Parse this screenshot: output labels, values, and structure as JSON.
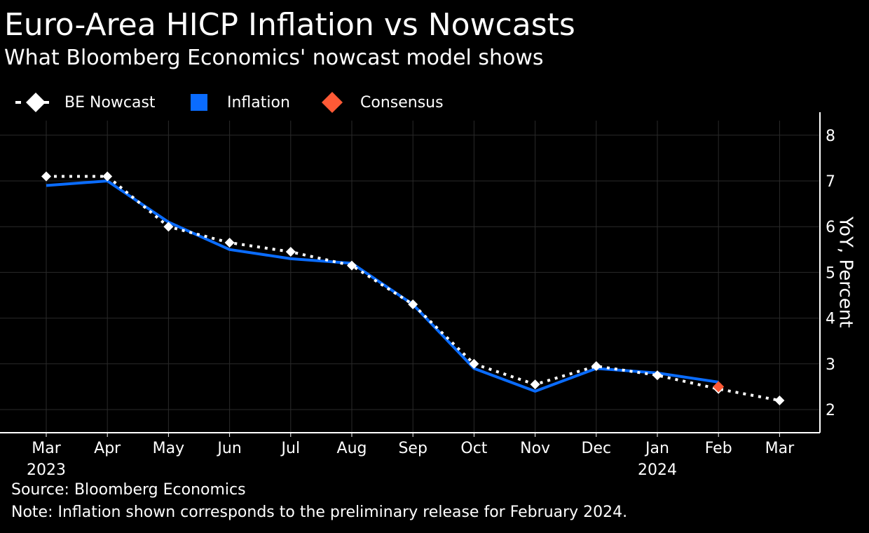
{
  "title": "Euro-Area HICP Inflation vs Nowcasts",
  "subtitle": "What Bloomberg Economics' nowcast model shows",
  "legend": {
    "nowcast": "BE Nowcast",
    "inflation": "Inflation",
    "consensus": "Consensus"
  },
  "source": "Source: Bloomberg Economics",
  "note": "Note: Inflation shown corresponds to the preliminary release for February 2024.",
  "colors": {
    "background": "#000000",
    "nowcast": "#ffffff",
    "inflation": "#0a6cff",
    "consensus": "#ff5a36",
    "grid": "#2a2a2a"
  },
  "chart_data": {
    "type": "line",
    "title": "Euro-Area HICP Inflation vs Nowcasts",
    "ylabel": "YoY, Percent",
    "xlabel": "",
    "ylim": [
      1.5,
      8.5
    ],
    "yticks": [
      2,
      3,
      4,
      5,
      6,
      7,
      8
    ],
    "grid": true,
    "legend_position": "top-left",
    "y_axis_side": "right",
    "categories": [
      "Mar",
      "Apr",
      "May",
      "Jun",
      "Jul",
      "Aug",
      "Sep",
      "Oct",
      "Nov",
      "Dec",
      "Jan",
      "Feb",
      "Mar"
    ],
    "year_labels": [
      {
        "index": 0,
        "label": "2023"
      },
      {
        "index": 10,
        "label": "2024"
      }
    ],
    "series": [
      {
        "name": "BE Nowcast",
        "style": "dotted-diamond",
        "values": [
          7.1,
          7.1,
          6.0,
          5.65,
          5.45,
          5.15,
          4.3,
          3.0,
          2.55,
          2.95,
          2.75,
          2.45,
          2.2
        ]
      },
      {
        "name": "Inflation",
        "style": "solid",
        "values": [
          6.9,
          7.0,
          6.1,
          5.5,
          5.3,
          5.2,
          4.3,
          2.9,
          2.4,
          2.9,
          2.8,
          2.6,
          null
        ]
      },
      {
        "name": "Consensus",
        "style": "diamond",
        "values": [
          null,
          null,
          null,
          null,
          null,
          null,
          null,
          null,
          null,
          null,
          null,
          2.5,
          null
        ]
      }
    ]
  }
}
